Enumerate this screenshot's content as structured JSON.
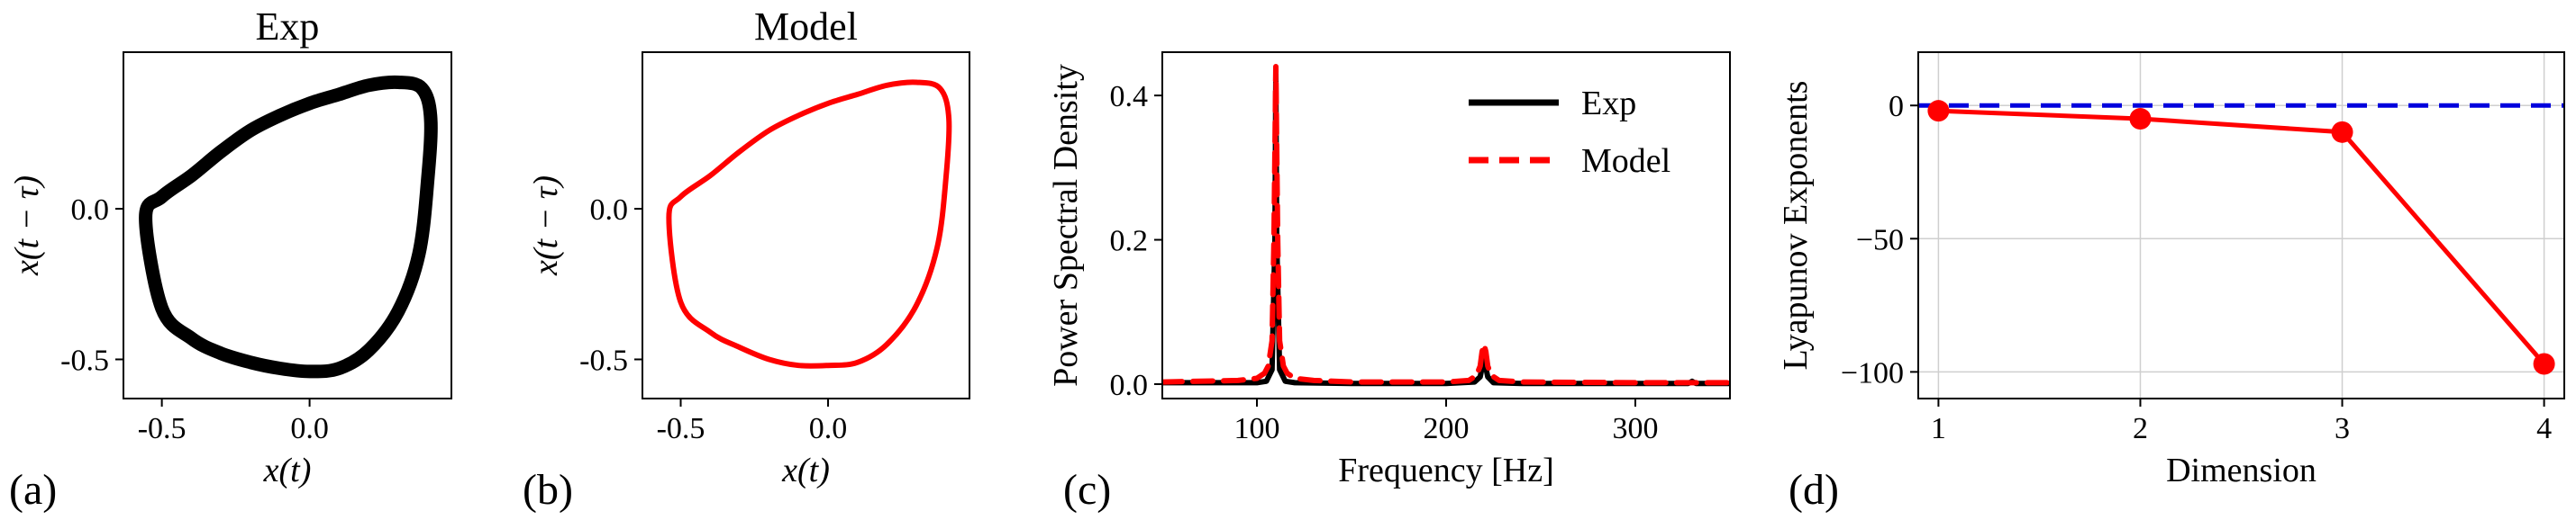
{
  "colors": {
    "exp": "#000000",
    "model": "#ff0000",
    "zero_line": "#0000dd",
    "grid": "#cfcfcf"
  },
  "chart_data": [
    {
      "id": "a",
      "type": "line",
      "panel_label": "(a)",
      "title": "Exp",
      "xlabel": "x(t)",
      "ylabel": "x(t − τ)",
      "xlim": [
        -0.63,
        0.48
      ],
      "ylim": [
        -0.63,
        0.52
      ],
      "xticks": [
        -0.5,
        0.0
      ],
      "xtick_labels": [
        "-0.5",
        "0.0"
      ],
      "yticks": [
        0.0,
        -0.5
      ],
      "ytick_labels": [
        "0.0",
        "-0.5"
      ],
      "series": [
        {
          "color": "exp",
          "closed": true,
          "thick": true,
          "x": [
            -0.555,
            -0.5,
            -0.4,
            -0.3,
            -0.2,
            -0.1,
            0.0,
            0.1,
            0.2,
            0.3,
            0.37,
            0.4,
            0.41,
            0.38,
            0.3,
            0.2,
            0.1,
            0.0,
            -0.1,
            -0.2,
            -0.3,
            -0.4,
            -0.5
          ],
          "y": [
            -0.03,
            -0.33,
            -0.43,
            -0.48,
            -0.51,
            -0.53,
            -0.54,
            -0.53,
            -0.47,
            -0.34,
            -0.15,
            0.1,
            0.3,
            0.4,
            0.42,
            0.41,
            0.38,
            0.35,
            0.31,
            0.26,
            0.19,
            0.11,
            0.04
          ]
        }
      ]
    },
    {
      "id": "b",
      "type": "line",
      "panel_label": "(b)",
      "title": "Model",
      "xlabel": "x(t)",
      "ylabel": "x(t − τ)",
      "xlim": [
        -0.63,
        0.48
      ],
      "ylim": [
        -0.63,
        0.52
      ],
      "xticks": [
        -0.5,
        0.0
      ],
      "xtick_labels": [
        "-0.5",
        "0.0"
      ],
      "yticks": [
        0.0,
        -0.5
      ],
      "ytick_labels": [
        "0.0",
        "-0.5"
      ],
      "series": [
        {
          "color": "model",
          "closed": true,
          "thick": false,
          "x": [
            -0.54,
            -0.5,
            -0.4,
            -0.3,
            -0.2,
            -0.1,
            0.0,
            0.1,
            0.2,
            0.3,
            0.37,
            0.4,
            0.41,
            0.38,
            0.3,
            0.2,
            0.1,
            0.0,
            -0.1,
            -0.2,
            -0.3,
            -0.4,
            -0.5
          ],
          "y": [
            -0.03,
            -0.31,
            -0.41,
            -0.46,
            -0.5,
            -0.52,
            -0.52,
            -0.51,
            -0.45,
            -0.32,
            -0.13,
            0.1,
            0.3,
            0.4,
            0.42,
            0.41,
            0.38,
            0.35,
            0.31,
            0.26,
            0.19,
            0.11,
            0.04
          ]
        }
      ]
    },
    {
      "id": "c",
      "type": "line",
      "panel_label": "(c)",
      "title": "",
      "xlabel": "Frequency [Hz]",
      "ylabel": "Power Spectral Density",
      "xlim": [
        50,
        350
      ],
      "ylim": [
        -0.02,
        0.46
      ],
      "xticks": [
        100,
        200,
        300
      ],
      "xtick_labels": [
        "100",
        "200",
        "300"
      ],
      "yticks": [
        0.0,
        0.2,
        0.4
      ],
      "ytick_labels": [
        "0.0",
        "0.2",
        "0.4"
      ],
      "legend": {
        "position": "top-right",
        "entries": [
          {
            "label": "Exp",
            "color": "exp",
            "dash": false
          },
          {
            "label": "Model",
            "color": "model",
            "dash": true
          }
        ]
      },
      "series": [
        {
          "name": "Exp",
          "color": "exp",
          "dash": false,
          "x": [
            50,
            100,
            105,
            108,
            109.5,
            110,
            110.5,
            112,
            115,
            120,
            150,
            200,
            215,
            218,
            219.5,
            220,
            220.5,
            222,
            225,
            240,
            300,
            328,
            330,
            332,
            350
          ],
          "y": [
            0.002,
            0.002,
            0.004,
            0.02,
            0.2,
            0.43,
            0.2,
            0.02,
            0.004,
            0.002,
            0.001,
            0.001,
            0.003,
            0.01,
            0.03,
            0.045,
            0.03,
            0.01,
            0.002,
            0.001,
            0.001,
            0.001,
            0.004,
            0.001,
            0.001
          ]
        },
        {
          "name": "Model",
          "color": "model",
          "dash": true,
          "x": [
            50,
            90,
            100,
            104,
            106,
            108,
            109,
            110,
            111,
            112,
            114,
            116,
            120,
            130,
            150,
            200,
            212,
            216,
            218,
            219,
            220,
            221,
            222,
            224,
            228,
            240,
            300,
            350
          ],
          "y": [
            0.003,
            0.005,
            0.008,
            0.015,
            0.025,
            0.06,
            0.2,
            0.44,
            0.2,
            0.06,
            0.025,
            0.015,
            0.008,
            0.005,
            0.003,
            0.003,
            0.005,
            0.012,
            0.025,
            0.045,
            0.055,
            0.045,
            0.025,
            0.012,
            0.005,
            0.003,
            0.002,
            0.002
          ]
        }
      ]
    },
    {
      "id": "d",
      "type": "line",
      "panel_label": "(d)",
      "title": "",
      "xlabel": "Dimension",
      "ylabel": "Lyapunov Exponents",
      "xlim": [
        0.9,
        4.1
      ],
      "ylim": [
        -110,
        20
      ],
      "grid": true,
      "xticks": [
        1,
        2,
        3,
        4
      ],
      "xtick_labels": [
        "1",
        "2",
        "3",
        "4"
      ],
      "yticks": [
        0,
        -50,
        -100
      ],
      "ytick_labels": [
        "0",
        "−50",
        "−100"
      ],
      "reference_line": {
        "y": 0,
        "color": "zero_line",
        "dash": true
      },
      "series": [
        {
          "color": "model",
          "markers": true,
          "x": [
            1,
            2,
            3,
            4
          ],
          "y": [
            -2,
            -5,
            -10,
            -97
          ]
        }
      ]
    }
  ]
}
